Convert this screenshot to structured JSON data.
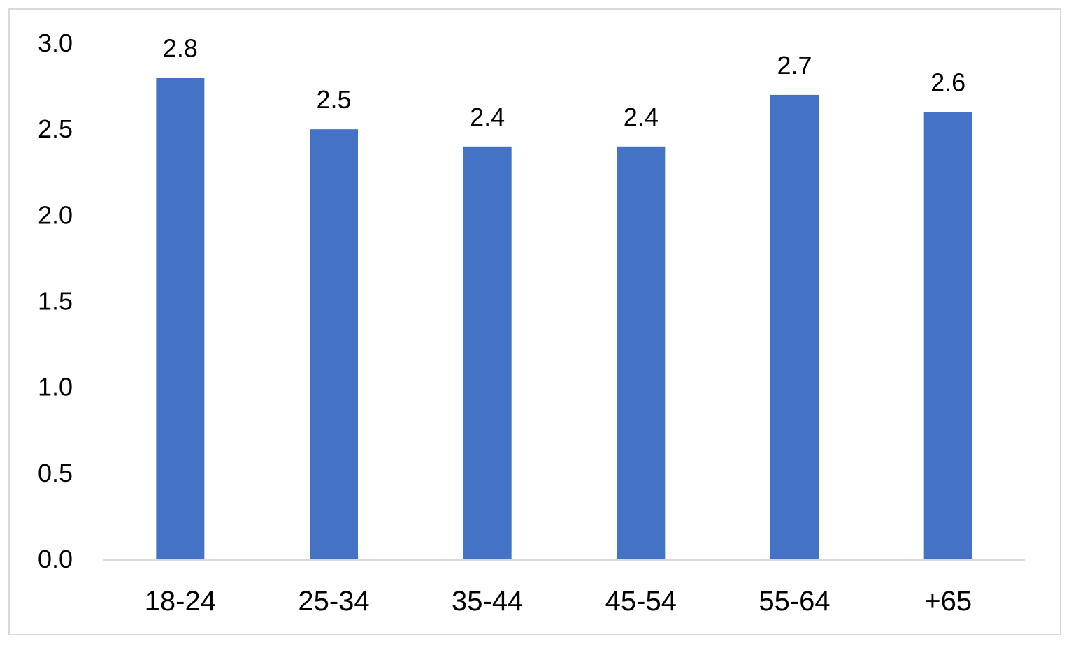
{
  "chart_data": {
    "type": "bar",
    "categories": [
      "18-24",
      "25-34",
      "35-44",
      "45-54",
      "55-64",
      "+65"
    ],
    "values": [
      2.8,
      2.5,
      2.4,
      2.4,
      2.7,
      2.6
    ],
    "data_labels": [
      "2.8",
      "2.5",
      "2.4",
      "2.4",
      "2.7",
      "2.6"
    ],
    "title": "",
    "xlabel": "",
    "ylabel": "",
    "ylim": [
      0,
      3
    ],
    "y_ticks": [
      "0.0",
      "0.5",
      "1.0",
      "1.5",
      "2.0",
      "2.5",
      "3.0"
    ],
    "grid": false,
    "legend": "none",
    "bar_color": "#4472c4",
    "axis_color": "#d9d9d9"
  }
}
